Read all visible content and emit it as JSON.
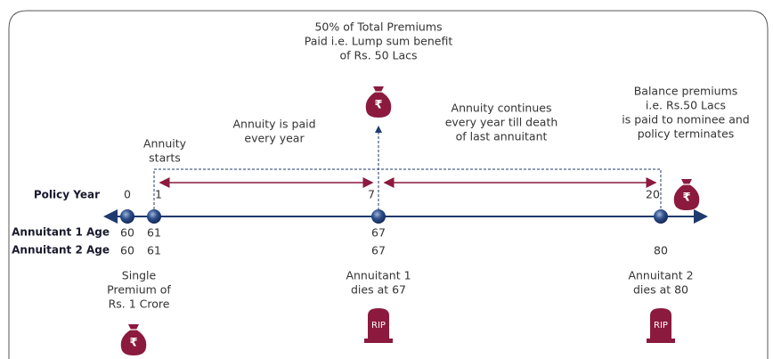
{
  "lump_sum": {
    "lines": [
      "50% of Total Premiums",
      "Paid i.e. Lump sum benefit",
      "of Rs. 50 Lacs"
    ]
  },
  "annuity_paid": {
    "lines": [
      "Annuity is paid",
      "every year"
    ]
  },
  "annuity_continues": {
    "lines": [
      "Annuity continues",
      "every year till death",
      "of last annuitant"
    ]
  },
  "balance": {
    "lines": [
      "Balance premiums",
      "i.e. Rs.50 Lacs",
      "is paid to nominee and",
      "policy terminates"
    ]
  },
  "annuity_starts": {
    "lines": [
      "Annuity",
      "starts"
    ]
  },
  "row_labels": {
    "policy_year": "Policy Year",
    "annuitant_1_age": "Annuitant 1 Age",
    "annuitant_2_age": "Annuitant 2 Age"
  },
  "policy_years": [
    0,
    1,
    7,
    20
  ],
  "annuitant_1_ages": [
    60,
    61,
    67
  ],
  "annuitant_2_ages": [
    60,
    61,
    67,
    80
  ],
  "single_premium": {
    "lines": [
      "Single",
      "Premium of",
      "Rs. 1 Crore"
    ]
  },
  "annuitant_1_death": {
    "lines": [
      "Annuitant 1",
      "dies at 67"
    ]
  },
  "annuitant_2_death": {
    "lines": [
      "Annuitant 2",
      "dies at 80"
    ]
  },
  "tombstones": [
    "RIP",
    "RIP"
  ],
  "bags": [
    "₹",
    "₹",
    "₹"
  ]
}
